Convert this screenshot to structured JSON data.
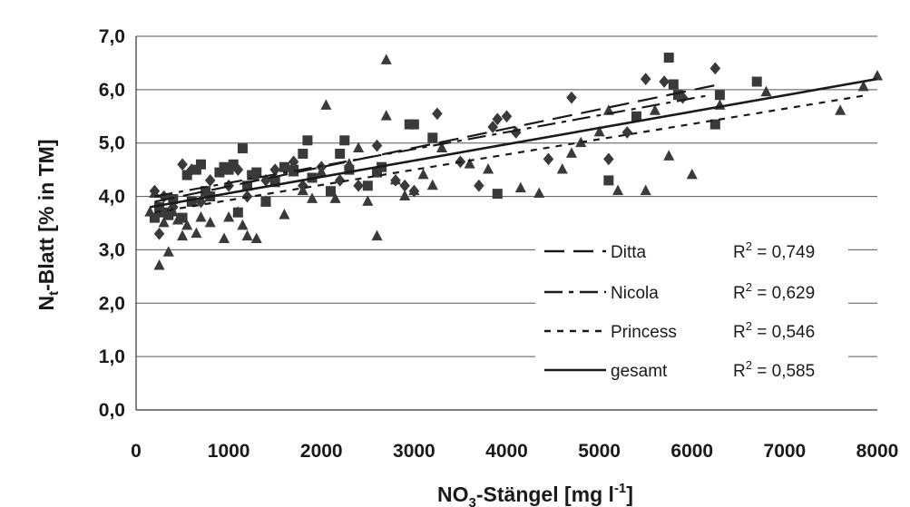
{
  "chart_data": {
    "type": "scatter",
    "xlabel": {
      "main": "NO",
      "sub": "3",
      "rest": "-Stängel [mg l",
      "sup": "-1",
      "close": "]"
    },
    "ylabel": {
      "main": "N",
      "sub": "t",
      "rest": "-Blatt [% in TM]"
    },
    "xlim": [
      0,
      8000
    ],
    "ylim": [
      0.0,
      7.0
    ],
    "x_ticks": [
      "0",
      "1000",
      "2000",
      "3000",
      "4000",
      "5000",
      "6000",
      "7000",
      "8000"
    ],
    "y_ticks": [
      "0,0",
      "1,0",
      "2,0",
      "3,0",
      "4,0",
      "5,0",
      "6,0",
      "7,0"
    ],
    "grid": "horizontal",
    "legend_position": "bottom-right",
    "series": [
      {
        "name": "Ditta",
        "marker": "square",
        "line_style": "long-dash",
        "r2_label": "R",
        "r2_value": " = 0,749",
        "fit": {
          "x": [
            200,
            6300
          ],
          "y": [
            3.9,
            6.1
          ]
        },
        "points": [
          [
            200,
            3.6
          ],
          [
            250,
            3.8
          ],
          [
            300,
            3.7
          ],
          [
            350,
            3.65
          ],
          [
            400,
            3.95
          ],
          [
            500,
            3.6
          ],
          [
            550,
            4.4
          ],
          [
            600,
            3.9
          ],
          [
            650,
            4.5
          ],
          [
            700,
            4.6
          ],
          [
            750,
            4.1
          ],
          [
            800,
            4.0
          ],
          [
            900,
            4.45
          ],
          [
            950,
            4.55
          ],
          [
            1000,
            4.5
          ],
          [
            1050,
            4.6
          ],
          [
            1100,
            3.7
          ],
          [
            1150,
            4.9
          ],
          [
            1200,
            4.2
          ],
          [
            1250,
            4.4
          ],
          [
            1300,
            4.45
          ],
          [
            1400,
            3.9
          ],
          [
            1500,
            4.3
          ],
          [
            1600,
            4.55
          ],
          [
            1700,
            4.5
          ],
          [
            1800,
            4.8
          ],
          [
            1850,
            5.05
          ],
          [
            1900,
            4.35
          ],
          [
            2100,
            4.1
          ],
          [
            2200,
            4.8
          ],
          [
            2250,
            5.05
          ],
          [
            2300,
            4.5
          ],
          [
            2500,
            4.2
          ],
          [
            2600,
            4.45
          ],
          [
            2650,
            4.55
          ],
          [
            2950,
            5.35
          ],
          [
            3000,
            5.35
          ],
          [
            3200,
            5.1
          ],
          [
            3900,
            4.05
          ],
          [
            5100,
            4.3
          ],
          [
            5400,
            5.5
          ],
          [
            5750,
            6.6
          ],
          [
            5800,
            6.1
          ],
          [
            5850,
            5.9
          ],
          [
            6300,
            5.9
          ],
          [
            6250,
            5.35
          ],
          [
            6700,
            6.15
          ]
        ]
      },
      {
        "name": "Nicola",
        "marker": "diamond",
        "line_style": "dash-dot",
        "r2_label": "R",
        "r2_value": " = 0,629",
        "fit": {
          "x": [
            200,
            6200
          ],
          "y": [
            4.0,
            5.9
          ]
        },
        "points": [
          [
            200,
            4.1
          ],
          [
            250,
            3.3
          ],
          [
            300,
            4.0
          ],
          [
            400,
            3.8
          ],
          [
            500,
            4.6
          ],
          [
            600,
            4.5
          ],
          [
            700,
            3.9
          ],
          [
            800,
            4.3
          ],
          [
            1000,
            4.2
          ],
          [
            1100,
            4.5
          ],
          [
            1200,
            4.0
          ],
          [
            1300,
            4.4
          ],
          [
            1400,
            4.3
          ],
          [
            1500,
            4.5
          ],
          [
            1700,
            4.65
          ],
          [
            1800,
            4.2
          ],
          [
            2000,
            4.55
          ],
          [
            2200,
            4.3
          ],
          [
            2400,
            4.2
          ],
          [
            2600,
            4.95
          ],
          [
            2800,
            4.3
          ],
          [
            2900,
            4.2
          ],
          [
            3000,
            4.1
          ],
          [
            3250,
            5.55
          ],
          [
            3500,
            4.65
          ],
          [
            3700,
            4.2
          ],
          [
            3850,
            5.3
          ],
          [
            3900,
            5.45
          ],
          [
            4000,
            5.5
          ],
          [
            4100,
            5.2
          ],
          [
            4450,
            4.7
          ],
          [
            4700,
            5.85
          ],
          [
            5100,
            4.7
          ],
          [
            5300,
            5.2
          ],
          [
            5500,
            6.2
          ],
          [
            5700,
            6.15
          ],
          [
            5900,
            5.85
          ],
          [
            6250,
            6.4
          ]
        ]
      },
      {
        "name": "Princess",
        "marker": "triangle",
        "line_style": "short-dash",
        "r2_label": "R",
        "r2_value": " = 0,546",
        "fit": {
          "x": [
            200,
            7900
          ],
          "y": [
            3.7,
            5.9
          ]
        },
        "points": [
          [
            150,
            3.7
          ],
          [
            200,
            4.05
          ],
          [
            250,
            2.7
          ],
          [
            300,
            3.5
          ],
          [
            350,
            2.95
          ],
          [
            400,
            3.7
          ],
          [
            450,
            3.55
          ],
          [
            500,
            3.25
          ],
          [
            550,
            3.45
          ],
          [
            650,
            3.3
          ],
          [
            700,
            3.6
          ],
          [
            800,
            3.5
          ],
          [
            950,
            3.2
          ],
          [
            1000,
            3.6
          ],
          [
            1100,
            3.7
          ],
          [
            1150,
            3.45
          ],
          [
            1200,
            3.25
          ],
          [
            1300,
            3.2
          ],
          [
            1400,
            3.9
          ],
          [
            1500,
            4.25
          ],
          [
            1600,
            3.65
          ],
          [
            1700,
            4.45
          ],
          [
            1800,
            4.1
          ],
          [
            1900,
            3.95
          ],
          [
            2000,
            4.45
          ],
          [
            2050,
            5.7
          ],
          [
            2150,
            3.95
          ],
          [
            2300,
            4.6
          ],
          [
            2400,
            4.9
          ],
          [
            2500,
            3.9
          ],
          [
            2600,
            3.25
          ],
          [
            2700,
            6.55
          ],
          [
            2700,
            5.5
          ],
          [
            2800,
            4.3
          ],
          [
            2900,
            4.0
          ],
          [
            3000,
            4.1
          ],
          [
            3100,
            4.4
          ],
          [
            3200,
            4.2
          ],
          [
            3300,
            4.9
          ],
          [
            3600,
            4.6
          ],
          [
            3800,
            4.5
          ],
          [
            4150,
            4.15
          ],
          [
            4350,
            4.05
          ],
          [
            4600,
            4.5
          ],
          [
            4700,
            4.8
          ],
          [
            4800,
            5.0
          ],
          [
            5000,
            5.2
          ],
          [
            5100,
            5.6
          ],
          [
            5200,
            4.1
          ],
          [
            5500,
            4.1
          ],
          [
            5600,
            5.6
          ],
          [
            5750,
            4.75
          ],
          [
            6000,
            4.4
          ],
          [
            6300,
            5.7
          ],
          [
            6800,
            5.95
          ],
          [
            7600,
            5.6
          ],
          [
            7850,
            6.05
          ],
          [
            8000,
            6.25
          ]
        ]
      },
      {
        "name": "gesamt",
        "marker": "none",
        "line_style": "solid",
        "r2_label": "R",
        "r2_value": " = 0,585",
        "fit": {
          "x": [
            150,
            8000
          ],
          "y": [
            3.8,
            6.2
          ]
        },
        "points": []
      }
    ]
  }
}
